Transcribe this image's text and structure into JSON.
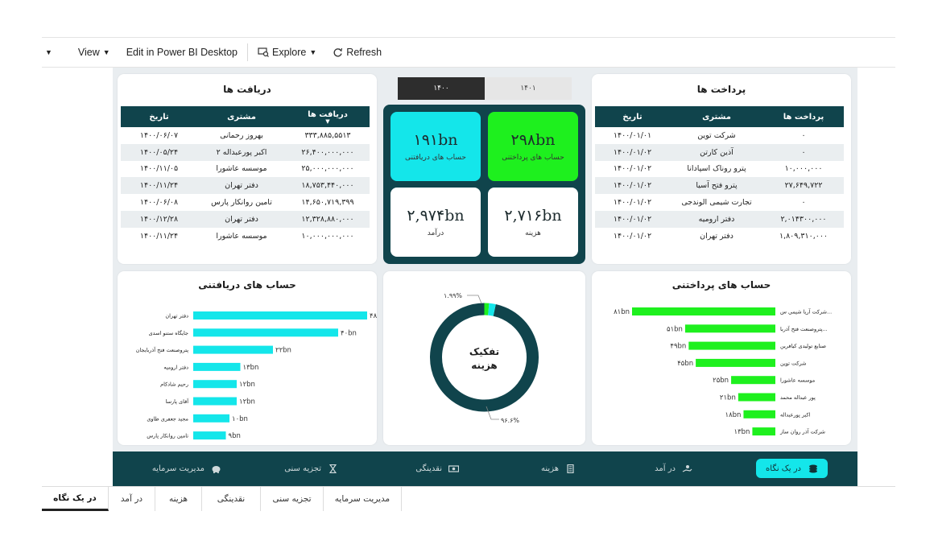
{
  "toolbar": {
    "items": [
      "View",
      "Edit in Power BI Desktop",
      "Explore",
      "Refresh"
    ]
  },
  "received_table": {
    "title": "دریافت ها",
    "headers": [
      "دریافت ها",
      "مشتری",
      "تاریخ"
    ],
    "rows": [
      [
        "۳۳۳,۸۸۵,۵۵۱۳",
        "بهروز رحمانی",
        "۱۴۰۰/۰۶/۰۷"
      ],
      [
        "۲۶,۴۰۰,۰۰۰,۰۰۰",
        "اکبر پورعبداله ۲",
        "۱۴۰۰/۰۵/۲۴"
      ],
      [
        "۲۵,۰۰۰,۰۰۰,۰۰۰",
        "موسسه عاشورا",
        "۱۴۰۰/۱۱/۰۵"
      ],
      [
        "۱۸,۷۵۳,۴۴۰,۰۰۰",
        "دفتر تهران",
        "۱۴۰۰/۱۱/۲۴"
      ],
      [
        "۱۴,۶۵۰,۷۱۹,۳۹۹",
        "تامین روانکار پارس",
        "۱۴۰۰/۰۶/۰۸"
      ],
      [
        "۱۲,۳۲۸,۸۸۰,۰۰۰",
        "دفتر تهران",
        "۱۴۰۰/۱۲/۲۸"
      ],
      [
        "۱۰,۰۰۰,۰۰۰,۰۰۰",
        "موسسه عاشورا",
        "۱۴۰۰/۱۱/۲۴"
      ]
    ]
  },
  "payments_table": {
    "title": "پرداخت ها",
    "headers": [
      "پرداخت ها",
      "مشتری",
      "تاریخ"
    ],
    "rows": [
      [
        "۰",
        "شرکت توین",
        "۱۴۰۰/۰۱/۰۱"
      ],
      [
        "۰",
        "آذین کارتن",
        "۱۴۰۰/۰۱/۰۲"
      ],
      [
        "۱۰,۰۰۰,۰۰۰",
        "پترو روناک اسپادانا",
        "۱۴۰۰/۰۱/۰۲"
      ],
      [
        "۲۷,۶۴۹,۷۲۲",
        "پترو فتح آسیا",
        "۱۴۰۰/۰۱/۰۲"
      ],
      [
        "۰",
        "تجارت شیمی الوندجی",
        "۱۴۰۰/۰۱/۰۲"
      ],
      [
        "۲,۰۱۴۳۰۰,۰۰۰",
        "دفتر ارومیه",
        "۱۴۰۰/۰۱/۰۲"
      ],
      [
        "۱,۸۰۹,۳۱۰,۰۰۰",
        "دفتر تهران",
        "۱۴۰۰/۰۱/۰۲"
      ]
    ]
  },
  "slicer": {
    "options": [
      "۱۴۰۰",
      "۱۴۰۱"
    ],
    "selected": "۱۴۰۰"
  },
  "kpis": {
    "receivable": {
      "value": "۱۹۱bn",
      "label": "حساب های دریافتنی",
      "color": "#14e6ea"
    },
    "payable": {
      "value": "۲۹۸bn",
      "label": "حساب های پرداختنی",
      "color": "#1ef01e"
    },
    "income": {
      "value": "۲,۹۷۴bn",
      "label": "درآمد",
      "color": "#ffffff"
    },
    "expense": {
      "value": "۲,۷۱۶bn",
      "label": "هزینه",
      "color": "#ffffff"
    }
  },
  "donut": {
    "title_line1": "تفکیک",
    "title_line2": "هزینه",
    "label_small": "۱.۹۹%",
    "label_large": "۹۶.۶%",
    "slices": [
      {
        "value": 96.6,
        "color": "#10444c"
      },
      {
        "value": 1.99,
        "color": "#14e6ea"
      },
      {
        "value": 1.41,
        "color": "#1ef01e"
      }
    ]
  },
  "chart_data": [
    {
      "type": "bar",
      "title": "حساب های دریافتنی",
      "categories": [
        "دفتر تهران",
        "جایگاه ستنو اسدی",
        "پتروصنعت فتح آذربایجان",
        "دفتر ارومیه",
        "رحیم شادکام",
        "آقای پارسا",
        "مجید جعفری طاوی",
        "تامین روانکار پارس"
      ],
      "values": [
        48,
        40,
        22,
        13,
        12,
        12,
        10,
        9
      ],
      "labels": [
        "۴۸bn",
        "۴۰bn",
        "۲۲bn",
        "۱۳bn",
        "۱۲bn",
        "۱۲bn",
        "۱۰bn",
        "۹bn"
      ],
      "color": "#14e6ea"
    },
    {
      "type": "bar",
      "title": "حساب های پرداختنی",
      "categories": [
        "شرکت آریا شیمی س...",
        "پتروصنعت فتح آذربا...",
        "صنایع تولیدی کیافرین",
        "شرکت توین",
        "موسسه عاشورا",
        "پور عبداله محمد",
        "اکبر پورعبداله",
        "شرکت آذر روان ساز"
      ],
      "values": [
        81,
        51,
        49,
        45,
        25,
        21,
        18,
        13
      ],
      "labels": [
        "۸۱bn",
        "۵۱bn",
        "۴۹bn",
        "۴۵bn",
        "۲۵bn",
        "۲۱bn",
        "۱۸bn",
        "۱۳bn"
      ],
      "color": "#1ef01e"
    }
  ],
  "navbar": {
    "items": [
      {
        "label": "در یک نگاه",
        "icon": "coins-icon"
      },
      {
        "label": "در آمد",
        "icon": "hand-money-icon"
      },
      {
        "label": "هزینه",
        "icon": "receipt-icon"
      },
      {
        "label": "نقدینگی",
        "icon": "cash-icon"
      },
      {
        "label": "تجزیه سنی",
        "icon": "hourglass-icon"
      },
      {
        "label": "مدیریت سرمایه",
        "icon": "piggy-bank-icon"
      }
    ]
  },
  "pagetabs": [
    "در یک نگاه",
    "در آمد",
    "هزینه",
    "نقدینگی",
    "تجزیه سنی",
    "مدیریت سرمایه"
  ]
}
